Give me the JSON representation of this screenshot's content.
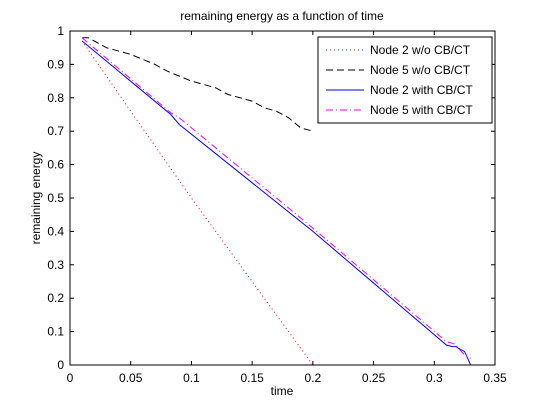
{
  "chart_data": {
    "type": "line",
    "title": "remaining energy as a function of time",
    "xlabel": "time",
    "ylabel": "remaining energy",
    "xlim": [
      0,
      0.35
    ],
    "ylim": [
      0,
      1
    ],
    "xticks": [
      0,
      0.05,
      0.1,
      0.15,
      0.2,
      0.25,
      0.3,
      0.35
    ],
    "xtick_labels": [
      "0",
      "0.05",
      "0.1",
      "0.15",
      "0.2",
      "0.25",
      "0.3",
      "0.35"
    ],
    "yticks": [
      0,
      0.1,
      0.2,
      0.3,
      0.4,
      0.5,
      0.6,
      0.7,
      0.8,
      0.9,
      1
    ],
    "ytick_labels": [
      "0",
      "0.1",
      "0.2",
      "0.3",
      "0.4",
      "0.5",
      "0.6",
      "0.7",
      "0.8",
      "0.9",
      "1"
    ],
    "grid": false,
    "legend_position": "top-right",
    "series": [
      {
        "name": "Node 2 w/o CB/CT",
        "color": "#ff0000",
        "dash": "dotted",
        "x": [
          0.01,
          0.05,
          0.1,
          0.15,
          0.2
        ],
        "y": [
          0.97,
          0.76,
          0.5,
          0.25,
          0.0
        ]
      },
      {
        "name": "Node 5 w/o CB/CT",
        "color": "#000000",
        "dash": "dashed",
        "x": [
          0.01,
          0.015,
          0.02,
          0.03,
          0.05,
          0.07,
          0.08,
          0.1,
          0.12,
          0.13,
          0.15,
          0.16,
          0.17,
          0.18,
          0.19,
          0.2
        ],
        "y": [
          0.98,
          0.98,
          0.97,
          0.95,
          0.93,
          0.9,
          0.88,
          0.85,
          0.83,
          0.81,
          0.79,
          0.77,
          0.76,
          0.74,
          0.71,
          0.7
        ]
      },
      {
        "name": "Node 2 with CB/CT",
        "color": "#0000ff",
        "dash": "solid",
        "x": [
          0.01,
          0.083,
          0.09,
          0.2,
          0.31,
          0.315,
          0.318,
          0.32,
          0.325,
          0.33
        ],
        "y": [
          0.97,
          0.75,
          0.72,
          0.4,
          0.06,
          0.055,
          0.055,
          0.05,
          0.04,
          0.0
        ]
      },
      {
        "name": "Node 5 with CB/CT",
        "color": "#ff00ff",
        "dash": "dashdot",
        "x": [
          0.01,
          0.083,
          0.09,
          0.2,
          0.31,
          0.315,
          0.318,
          0.32,
          0.325,
          0.33
        ],
        "y": [
          0.98,
          0.755,
          0.74,
          0.41,
          0.07,
          0.065,
          0.06,
          0.05,
          0.03,
          0.02
        ]
      }
    ]
  }
}
